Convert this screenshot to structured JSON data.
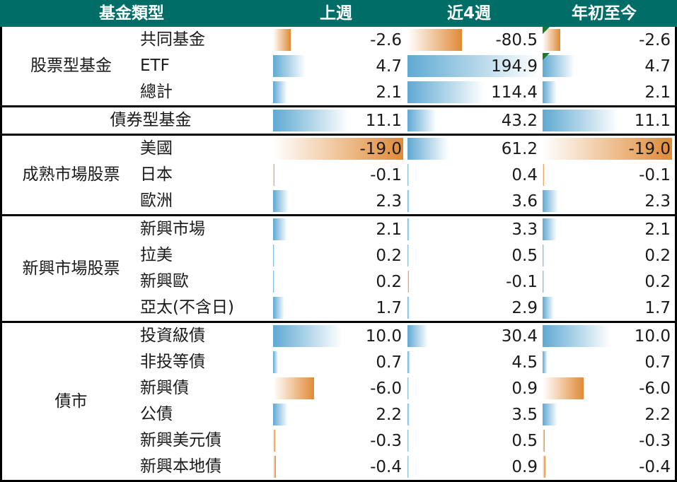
{
  "header": {
    "category": "基金類型",
    "col_week": "上週",
    "col_4w": "近4週",
    "col_ytd": "年初至今"
  },
  "colors": {
    "header_bg": "#006e66",
    "positive_bar": "#5fa9d2",
    "negative_bar": "#e08a36",
    "flag": "#1b7a2a"
  },
  "groups": [
    {
      "label": "股票型基金",
      "rows": [
        {
          "name": "共同基金",
          "week": "-2.6",
          "w4": "-80.5",
          "ytd": "-2.6",
          "flag_w4": true
        },
        {
          "name": "ETF",
          "week": "4.7",
          "w4": "194.9",
          "ytd": "4.7",
          "flag_w4": true
        },
        {
          "name": "總計",
          "week": "2.1",
          "w4": "114.4",
          "ytd": "2.1"
        }
      ]
    },
    {
      "label": "債券型基金",
      "rows": [
        {
          "name": "",
          "week": "11.1",
          "w4": "43.2",
          "ytd": "11.1"
        }
      ]
    },
    {
      "label": "成熟市場股票",
      "rows": [
        {
          "name": "美國",
          "week": "-19.0",
          "w4": "61.2",
          "ytd": "-19.0"
        },
        {
          "name": "日本",
          "week": "-0.1",
          "w4": "0.4",
          "ytd": "-0.1"
        },
        {
          "name": "歐洲",
          "week": "2.3",
          "w4": "3.6",
          "ytd": "2.3"
        }
      ]
    },
    {
      "label": "新興市場股票",
      "rows": [
        {
          "name": "新興市場",
          "week": "2.1",
          "w4": "3.3",
          "ytd": "2.1"
        },
        {
          "name": "拉美",
          "week": "0.2",
          "w4": "0.5",
          "ytd": "0.2"
        },
        {
          "name": "新興歐",
          "week": "0.2",
          "w4": "-0.1",
          "ytd": "0.2"
        },
        {
          "name": "亞太(不含日)",
          "week": "1.7",
          "w4": "2.9",
          "ytd": "1.7"
        }
      ]
    },
    {
      "label": "債市",
      "rows": [
        {
          "name": "投資級債",
          "week": "10.0",
          "w4": "30.4",
          "ytd": "10.0"
        },
        {
          "name": "非投等債",
          "week": "0.7",
          "w4": "4.5",
          "ytd": "0.7"
        },
        {
          "name": "新興債",
          "week": "-6.0",
          "w4": "0.9",
          "ytd": "-6.0"
        },
        {
          "name": "公債",
          "week": "2.2",
          "w4": "3.5",
          "ytd": "2.2"
        },
        {
          "name": "新興美元債",
          "week": "-0.3",
          "w4": "0.5",
          "ytd": "-0.3"
        },
        {
          "name": "新興本地債",
          "week": "-0.4",
          "w4": "0.9",
          "ytd": "-0.4"
        }
      ]
    }
  ]
}
